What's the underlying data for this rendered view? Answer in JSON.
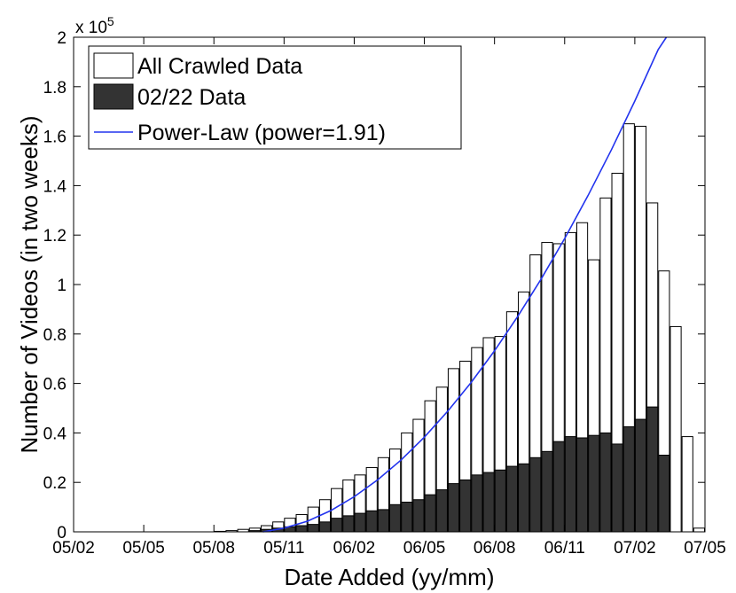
{
  "chart_data": {
    "type": "bar",
    "xlabel": "Date Added (yy/mm)",
    "ylabel": "Number of Videos (in two weeks)",
    "y_multiplier_label": "x 10",
    "y_multiplier_exp": "5",
    "ylim": [
      0,
      200000
    ],
    "y_ticks": [
      0,
      20000,
      40000,
      60000,
      80000,
      100000,
      120000,
      140000,
      160000,
      180000,
      200000
    ],
    "y_tick_labels": [
      "0",
      "0.2",
      "0.4",
      "0.6",
      "0.8",
      "1",
      "1.2",
      "1.4",
      "1.6",
      "1.8",
      "2"
    ],
    "x_tick_labels": [
      "05/02",
      "05/05",
      "05/08",
      "05/11",
      "06/02",
      "06/05",
      "06/08",
      "06/11",
      "07/02",
      "07/05"
    ],
    "bin_width_weeks": 2,
    "legend_position": "top-left",
    "series": [
      {
        "name": "All Crawled Data",
        "style": "bar",
        "color": "#ffffff",
        "values": [
          0,
          0,
          0,
          0,
          0,
          0,
          0,
          0,
          0,
          0,
          0,
          0,
          200,
          500,
          1000,
          1500,
          2500,
          4000,
          5500,
          7000,
          10000,
          13000,
          17500,
          21000,
          23000,
          26000,
          30000,
          33500,
          40000,
          45500,
          53000,
          58500,
          66000,
          69000,
          74500,
          78500,
          79000,
          89000,
          97000,
          112000,
          117000,
          116500,
          121000,
          125000,
          110000,
          135000,
          145000,
          165000,
          164000,
          133000,
          105500,
          83000,
          38500,
          1500
        ]
      },
      {
        "name": "02/22 Data",
        "style": "bar",
        "color": "#333333",
        "values": [
          0,
          0,
          0,
          0,
          0,
          0,
          0,
          0,
          0,
          0,
          0,
          0,
          0,
          0,
          0,
          500,
          1000,
          1500,
          2000,
          2500,
          3000,
          4000,
          5500,
          6500,
          7500,
          8500,
          9000,
          11000,
          12000,
          13000,
          15000,
          17000,
          19500,
          21000,
          23000,
          24000,
          25000,
          26500,
          27500,
          30000,
          32500,
          36500,
          38500,
          38000,
          39000,
          40000,
          35500,
          42500,
          45500,
          50500,
          31000,
          0,
          0,
          0
        ]
      },
      {
        "name": "Power-Law (power=1.91)",
        "style": "line",
        "color": "#2233ee",
        "power": 1.91,
        "x": [
          16.2,
          18,
          20,
          22,
          24,
          26,
          28,
          30,
          32,
          34,
          36,
          38,
          40,
          42,
          44,
          46,
          48,
          50,
          50.7
        ],
        "y": [
          0,
          1500,
          4300,
          8600,
          14200,
          21000,
          29000,
          38300,
          48800,
          60400,
          73200,
          87200,
          102300,
          118600,
          136000,
          154500,
          174200,
          195000,
          200000
        ]
      }
    ]
  }
}
